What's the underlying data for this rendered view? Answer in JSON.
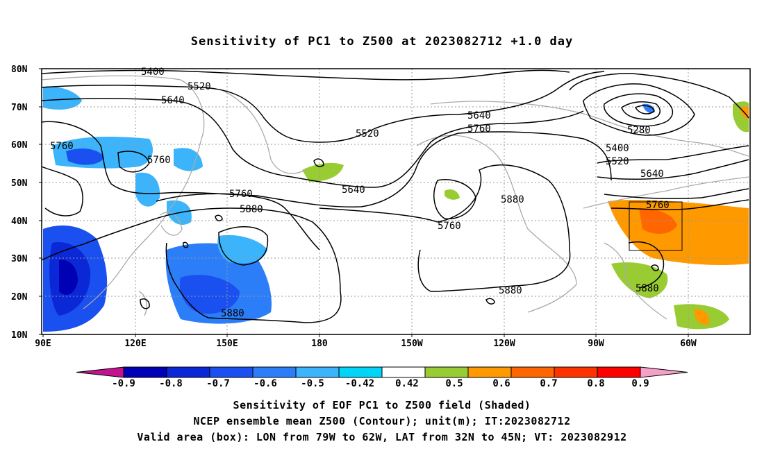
{
  "title": "Sensitivity of PC1 to Z500 at 2023082712 +1.0 day",
  "lat_labels": [
    "80N",
    "70N",
    "60N",
    "50N",
    "40N",
    "30N",
    "20N",
    "10N"
  ],
  "lon_labels": [
    "90E",
    "120E",
    "150E",
    "180",
    "150W",
    "120W",
    "90W",
    "60W"
  ],
  "colorbar": {
    "labels": [
      "-0.9",
      "-0.8",
      "-0.7",
      "-0.6",
      "-0.5",
      "-0.42",
      "0.42",
      "0.5",
      "0.6",
      "0.7",
      "0.8",
      "0.9"
    ],
    "colors": [
      "#c2138e",
      "#0000b4",
      "#0b28d7",
      "#1b50f0",
      "#2c7ef8",
      "#3cb4fb",
      "#00d4f8",
      "#ffffff",
      "#99cc33",
      "#ff9900",
      "#ff6600",
      "#ff3300",
      "#ff0000",
      "#f5a0c8"
    ]
  },
  "contour_labels": [
    {
      "text": "5400"
    },
    {
      "text": "5520"
    },
    {
      "text": "5640"
    },
    {
      "text": "5760"
    },
    {
      "text": "5760"
    },
    {
      "text": "5760"
    },
    {
      "text": "5880"
    },
    {
      "text": "5520"
    },
    {
      "text": "5640"
    },
    {
      "text": "5760"
    },
    {
      "text": "5640"
    },
    {
      "text": "5760"
    },
    {
      "text": "5880"
    },
    {
      "text": "5880"
    },
    {
      "text": "5880"
    },
    {
      "text": "5280"
    },
    {
      "text": "5400"
    },
    {
      "text": "5520"
    },
    {
      "text": "5640"
    },
    {
      "text": "5760"
    },
    {
      "text": "5880"
    }
  ],
  "valid_box": {
    "lon_from": "79W",
    "lon_to": "62W",
    "lat_from": "32N",
    "lat_to": "45N"
  },
  "footer": {
    "line1": "Sensitivity of EOF PC1 to Z500 field (Shaded)",
    "line2": "NCEP ensemble mean Z500 (Contour); unit(m); IT:2023082712",
    "line3": "Valid area (box): LON from 79W to 62W, LAT from 32N to 45N; VT: 2023082912"
  }
}
